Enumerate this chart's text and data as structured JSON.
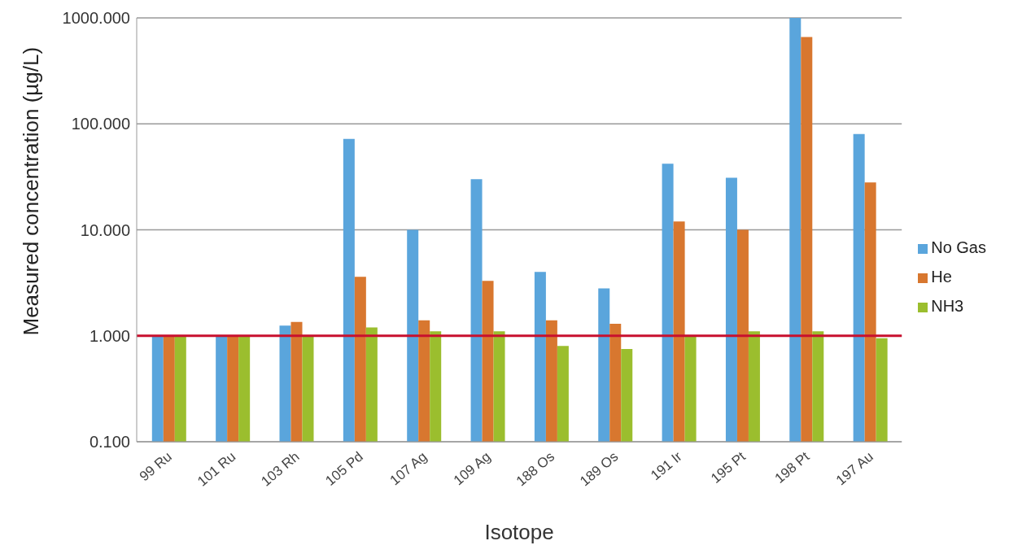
{
  "chart_data": {
    "type": "bar",
    "xlabel": "Isotope",
    "ylabel": "Measured concentration (µg/L)",
    "categories": [
      "99 Ru",
      "101 Ru",
      "103 Rh",
      "105 Pd",
      "107 Ag",
      "109 Ag",
      "188 Os",
      "189 Os",
      "191 Ir",
      "195 Pt",
      "198 Pt",
      "197 Au"
    ],
    "series": [
      {
        "name": "No Gas",
        "color": "#5aa5dc",
        "values": [
          1.0,
          1.0,
          1.25,
          72,
          10,
          30,
          4.0,
          2.8,
          42,
          31,
          1000,
          80
        ]
      },
      {
        "name": "He",
        "color": "#d8772f",
        "values": [
          1.0,
          1.0,
          1.35,
          3.6,
          1.4,
          3.3,
          1.4,
          1.3,
          12,
          10,
          660,
          28
        ]
      },
      {
        "name": "NH3",
        "color": "#9bbe2e",
        "values": [
          1.0,
          1.0,
          1.0,
          1.2,
          1.1,
          1.1,
          0.8,
          0.75,
          1.0,
          1.1,
          1.1,
          0.95
        ]
      }
    ],
    "log": true,
    "ylim": [
      0.1,
      1000
    ],
    "yticks": [
      {
        "value": 0.1,
        "label": "0.100"
      },
      {
        "value": 1,
        "label": "1.000"
      },
      {
        "value": 10,
        "label": "10.000"
      },
      {
        "value": 100,
        "label": "100.000"
      },
      {
        "value": 1000,
        "label": "1000.000"
      }
    ],
    "grid": "y",
    "legend": "right",
    "ref_lines": [
      {
        "axis": "y",
        "value": 1,
        "color": "#c8102e"
      }
    ]
  }
}
